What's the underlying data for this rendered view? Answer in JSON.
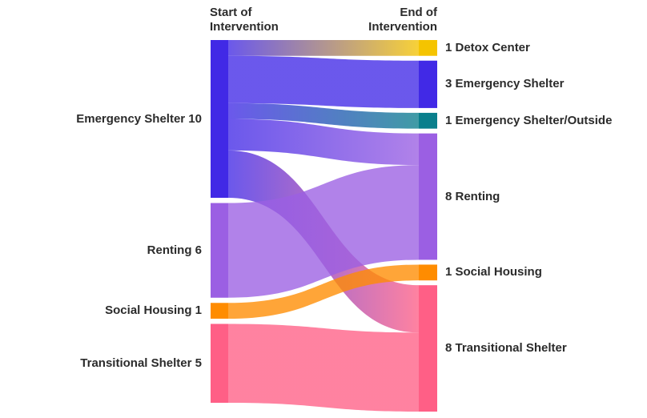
{
  "headers": {
    "start_line1": "Start of",
    "start_line2": "Intervention",
    "end_line1": "End of",
    "end_line2": "Intervention"
  },
  "left_nodes": [
    {
      "id": "es",
      "label": "Emergency Shelter 10",
      "value": 10,
      "color": "#4129e6"
    },
    {
      "id": "rent",
      "label": "Renting 6",
      "value": 6,
      "color": "#9b5fe3"
    },
    {
      "id": "sh",
      "label": "Social Housing 1",
      "value": 1,
      "color": "#ff8c00"
    },
    {
      "id": "ts",
      "label": "Transitional Shelter 5",
      "value": 5,
      "color": "#ff5f86"
    }
  ],
  "right_nodes": [
    {
      "id": "detox",
      "label": "1 Detox Center",
      "value": 1,
      "color": "#f5c400"
    },
    {
      "id": "es",
      "label": "3 Emergency Shelter",
      "value": 3,
      "color": "#4129e6"
    },
    {
      "id": "eso",
      "label": "1 Emergency Shelter/Outside",
      "value": 1,
      "color": "#0a7f8c"
    },
    {
      "id": "rent",
      "label": "8 Renting",
      "value": 8,
      "color": "#9b5fe3"
    },
    {
      "id": "sh",
      "label": "1 Social Housing",
      "value": 1,
      "color": "#ff8c00"
    },
    {
      "id": "ts",
      "label": "8 Transitional Shelter",
      "value": 8,
      "color": "#ff5f86"
    }
  ],
  "flows": [
    {
      "from": "es",
      "to": "detox",
      "value": 1
    },
    {
      "from": "es",
      "to": "es",
      "value": 3
    },
    {
      "from": "es",
      "to": "eso",
      "value": 1
    },
    {
      "from": "es",
      "to": "rent",
      "value": 2
    },
    {
      "from": "es",
      "to": "ts",
      "value": 3
    },
    {
      "from": "rent",
      "to": "rent",
      "value": 6
    },
    {
      "from": "sh",
      "to": "sh",
      "value": 1
    },
    {
      "from": "ts",
      "to": "ts",
      "value": 5
    }
  ]
}
